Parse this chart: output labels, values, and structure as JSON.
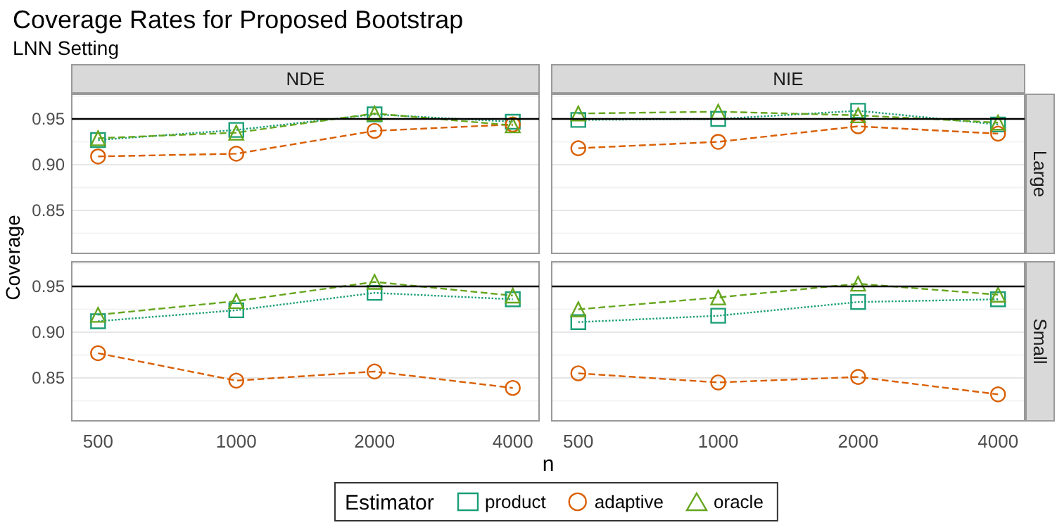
{
  "chart_data": [
    {
      "type": "line",
      "title": "Coverage Rates for Proposed Bootstrap",
      "subtitle": "LNN Setting",
      "ylabel": "Coverage",
      "x2label": "NDE",
      "legend": "bottom",
      "legend_title": "Estimator",
      "tick_labels": "y",
      "grid": "y",
      "categories": [
        "500",
        "1000",
        "2000",
        "4000"
      ],
      "ylim": [
        0.803,
        0.977
      ],
      "yticks": [
        {
          "value": 0.825,
          "label": null
        },
        0.85,
        {
          "value": 0.875,
          "label": null
        },
        {
          "value": 0.9,
          "label": "0.90"
        },
        {
          "value": 0.925,
          "label": null
        },
        0.95,
        {
          "value": 0.975,
          "label": null
        }
      ],
      "ref_lines": [
        {
          "axis": "y",
          "value": 0.95,
          "color": "#000000"
        }
      ],
      "series": [
        {
          "name": "product",
          "color": "#1b9e77",
          "marker": "square",
          "line_style": "dotted",
          "values": [
            0.927,
            0.938,
            0.955,
            0.947
          ]
        },
        {
          "name": "adaptive",
          "color": "#d95f02",
          "marker": "circle",
          "line_style": "dashed",
          "values": [
            0.909,
            0.912,
            0.937,
            0.944
          ]
        },
        {
          "name": "oracle",
          "color": "#66a61e",
          "marker": "triangle",
          "line_style": "dashed",
          "values": [
            0.929,
            0.935,
            0.956,
            0.943
          ]
        }
      ]
    },
    {
      "type": "line",
      "x2label": "NIE",
      "y2label": "Large",
      "tick_labels": false,
      "grid": "y",
      "categories": [
        "500",
        "1000",
        "2000",
        "4000"
      ],
      "ylim": [
        0.803,
        0.977
      ],
      "yticks": [
        {
          "value": 0.825,
          "label": null
        },
        0.85,
        {
          "value": 0.875,
          "label": null
        },
        0.9,
        {
          "value": 0.925,
          "label": null
        },
        0.95,
        {
          "value": 0.975,
          "label": null
        }
      ],
      "ref_lines": [
        {
          "axis": "y",
          "value": 0.95,
          "color": "#000000"
        }
      ],
      "series": [
        {
          "color": "#1b9e77",
          "marker": "square",
          "line_style": "dotted",
          "values": [
            0.949,
            0.95,
            0.959,
            0.944
          ]
        },
        {
          "color": "#d95f02",
          "marker": "circle",
          "line_style": "dashed",
          "values": [
            0.918,
            0.925,
            0.942,
            0.934
          ]
        },
        {
          "color": "#66a61e",
          "marker": "triangle",
          "line_style": "dashed",
          "values": [
            0.956,
            0.958,
            0.954,
            0.946
          ]
        }
      ]
    },
    {
      "type": "line",
      "xlabel": "n",
      "grid": "y",
      "categories": [
        "500",
        "1000",
        "2000",
        "4000"
      ],
      "ylim": [
        0.803,
        0.977
      ],
      "yticks": [
        {
          "value": 0.825,
          "label": null
        },
        0.85,
        {
          "value": 0.875,
          "label": null
        },
        {
          "value": 0.9,
          "label": "0.90"
        },
        {
          "value": 0.925,
          "label": null
        },
        0.95,
        {
          "value": 0.975,
          "label": null
        }
      ],
      "ref_lines": [
        {
          "axis": "y",
          "value": 0.95,
          "color": "#000000"
        }
      ],
      "series": [
        {
          "color": "#1b9e77",
          "marker": "square",
          "line_style": "dotted",
          "values": [
            0.912,
            0.924,
            0.943,
            0.936
          ]
        },
        {
          "color": "#d95f02",
          "marker": "circle",
          "line_style": "dashed",
          "values": [
            0.877,
            0.847,
            0.857,
            0.839
          ]
        },
        {
          "color": "#66a61e",
          "marker": "triangle",
          "line_style": "dashed",
          "values": [
            0.919,
            0.934,
            0.955,
            0.94
          ]
        }
      ]
    },
    {
      "type": "line",
      "y2label": "Small",
      "tick_labels": "x",
      "grid": "y",
      "categories": [
        "500",
        "1000",
        "2000",
        "4000"
      ],
      "ylim": [
        0.803,
        0.977
      ],
      "yticks": [
        {
          "value": 0.825,
          "label": null
        },
        0.85,
        {
          "value": 0.875,
          "label": null
        },
        0.9,
        {
          "value": 0.925,
          "label": null
        },
        0.95,
        {
          "value": 0.975,
          "label": null
        }
      ],
      "ref_lines": [
        {
          "axis": "y",
          "value": 0.95,
          "color": "#000000"
        }
      ],
      "series": [
        {
          "color": "#1b9e77",
          "marker": "square",
          "line_style": "dotted",
          "values": [
            0.911,
            0.918,
            0.933,
            0.936
          ]
        },
        {
          "color": "#d95f02",
          "marker": "circle",
          "line_style": "dashed",
          "values": [
            0.855,
            0.845,
            0.851,
            0.832
          ]
        },
        {
          "color": "#66a61e",
          "marker": "triangle",
          "line_style": "dashed",
          "values": [
            0.925,
            0.938,
            0.953,
            0.941
          ]
        }
      ]
    }
  ]
}
